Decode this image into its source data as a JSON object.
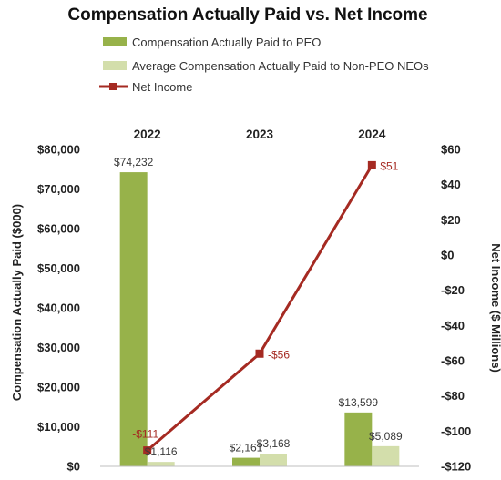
{
  "chart_data": {
    "type": "bar",
    "title": "Compensation Actually Paid vs. Net Income",
    "categories": [
      "2022",
      "2023",
      "2024"
    ],
    "series": [
      {
        "name": "Compensation Actually Paid to PEO",
        "kind": "bar",
        "axis": "left",
        "color": "#97b24a",
        "values": [
          74232,
          2161,
          13599
        ],
        "labels": [
          "$74,232",
          "$2,161",
          "$13,599"
        ]
      },
      {
        "name": "Average Compensation Actually Paid to Non-PEO NEOs",
        "kind": "bar",
        "axis": "left",
        "color": "#d3deab",
        "values": [
          1116,
          3168,
          5089
        ],
        "labels": [
          "$1,116",
          "$3,168",
          "$5,089"
        ]
      },
      {
        "name": "Net Income",
        "kind": "line",
        "axis": "right",
        "color": "#a52a22",
        "values": [
          -111,
          -56,
          51
        ],
        "labels": [
          "-$111",
          "-$56",
          "$51"
        ]
      }
    ],
    "y_left": {
      "label": "Compensation Actually Paid ($000)",
      "lim": [
        0,
        80000
      ],
      "ticks": [
        0,
        10000,
        20000,
        30000,
        40000,
        50000,
        60000,
        70000,
        80000
      ],
      "tick_labels": [
        "$0",
        "$10,000",
        "$20,000",
        "$30,000",
        "$40,000",
        "$50,000",
        "$60,000",
        "$70,000",
        "$80,000"
      ]
    },
    "y_right": {
      "label": "Net Income ($ Millions)",
      "lim": [
        -120,
        60
      ],
      "ticks": [
        -120,
        -100,
        -80,
        -60,
        -40,
        -20,
        0,
        20,
        40,
        60
      ],
      "tick_labels": [
        "-$120",
        "-$100",
        "-$80",
        "-$60",
        "-$40",
        "-$20",
        "$0",
        "$20",
        "$40",
        "$60"
      ]
    },
    "category_axis_position": "top",
    "legend_position": "top-left",
    "grid": false,
    "label_color_bars": "#3a3a3a",
    "label_color_line": "#a52a22"
  }
}
